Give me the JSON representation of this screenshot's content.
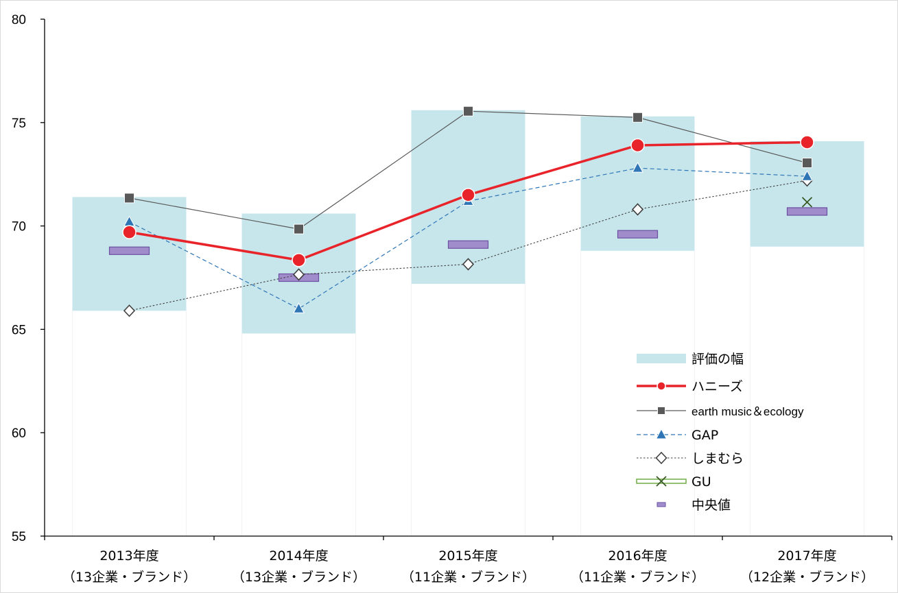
{
  "chart_data": {
    "type": "line",
    "categories": [
      [
        "2013年度",
        "（13企業・ブランド）"
      ],
      [
        "2014年度",
        "（13企業・ブランド）"
      ],
      [
        "2015年度",
        "（11企業・ブランド）"
      ],
      [
        "2016年度",
        "（11企業・ブランド）"
      ],
      [
        "2017年度",
        "（12企業・ブランド）"
      ]
    ],
    "ylim": [
      55,
      80
    ],
    "yticks": [
      55,
      60,
      65,
      70,
      75,
      80
    ],
    "grid": false,
    "legend_position": "bottom-right",
    "range": {
      "name": "評価の幅",
      "color": "#c7e6ec",
      "low": [
        65.9,
        64.8,
        67.2,
        68.8,
        69.0
      ],
      "high": [
        71.4,
        70.6,
        75.6,
        75.3,
        74.1
      ]
    },
    "median": {
      "name": "中央値",
      "color": "#a08ccb",
      "border": "#6b4fa0",
      "values": [
        68.8,
        67.5,
        69.1,
        69.6,
        70.7
      ]
    },
    "series": [
      {
        "name": "ハニーズ",
        "color": "#e8232a",
        "marker": "circle",
        "style": "solid-thick",
        "values": [
          69.7,
          68.35,
          71.5,
          73.9,
          74.05
        ]
      },
      {
        "name": "earth music＆ecology",
        "color": "#595959",
        "marker": "square",
        "style": "solid-thin",
        "values": [
          71.35,
          69.85,
          75.55,
          75.25,
          73.05
        ]
      },
      {
        "name": "GAP",
        "color": "#2e75b6",
        "marker": "triangle",
        "style": "dashed",
        "values": [
          70.2,
          66.0,
          71.2,
          72.8,
          72.4
        ]
      },
      {
        "name": "しまむら",
        "color": "#404040",
        "marker": "diamond",
        "style": "dotted",
        "values": [
          65.9,
          67.65,
          68.15,
          70.8,
          72.2
        ]
      },
      {
        "name": "GU",
        "color": "#385723",
        "line_color": "#70ad47",
        "marker": "x",
        "style": "double",
        "values": [
          null,
          null,
          null,
          null,
          71.15
        ]
      }
    ]
  }
}
